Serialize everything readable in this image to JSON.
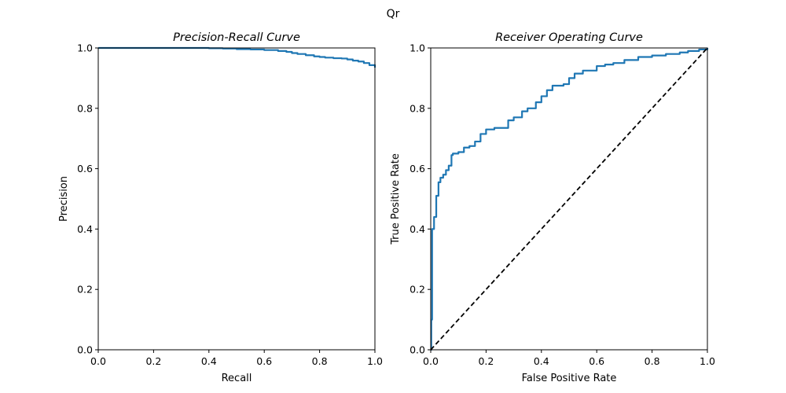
{
  "figure": {
    "suptitle": "Qr"
  },
  "chart_data": [
    {
      "type": "line",
      "title": "Precision-Recall Curve",
      "xlabel": "Recall",
      "ylabel": "Precision",
      "xlim": [
        0.0,
        1.0
      ],
      "ylim": [
        0.0,
        1.0
      ],
      "xticks": [
        "0.0",
        "0.2",
        "0.4",
        "0.6",
        "0.8",
        "1.0"
      ],
      "yticks": [
        "0.0",
        "0.2",
        "0.4",
        "0.6",
        "0.8",
        "1.0"
      ],
      "grid": false,
      "series": [
        {
          "color": "#1f77b4",
          "style": "step",
          "x": [
            0.0,
            0.05,
            0.1,
            0.2,
            0.3,
            0.4,
            0.45,
            0.5,
            0.55,
            0.6,
            0.65,
            0.68,
            0.7,
            0.72,
            0.75,
            0.78,
            0.8,
            0.82,
            0.85,
            0.88,
            0.9,
            0.92,
            0.94,
            0.96,
            0.98,
            1.0
          ],
          "y": [
            1.0,
            1.0,
            1.0,
            1.0,
            1.0,
            0.999,
            0.998,
            0.996,
            0.995,
            0.993,
            0.99,
            0.987,
            0.983,
            0.98,
            0.976,
            0.972,
            0.97,
            0.968,
            0.966,
            0.965,
            0.962,
            0.958,
            0.955,
            0.95,
            0.943,
            0.935
          ]
        }
      ]
    },
    {
      "type": "line",
      "title": "Receiver Operating Curve",
      "xlabel": "False Positive Rate",
      "ylabel": "True Positive Rate",
      "xlim": [
        0.0,
        1.0
      ],
      "ylim": [
        0.0,
        1.0
      ],
      "xticks": [
        "0.0",
        "0.2",
        "0.4",
        "0.6",
        "0.8",
        "1.0"
      ],
      "yticks": [
        "0.0",
        "0.2",
        "0.4",
        "0.6",
        "0.8",
        "1.0"
      ],
      "grid": false,
      "series": [
        {
          "color": "#1f77b4",
          "style": "step",
          "x": [
            0.0,
            0.002,
            0.005,
            0.012,
            0.02,
            0.028,
            0.035,
            0.045,
            0.055,
            0.065,
            0.075,
            0.08,
            0.1,
            0.12,
            0.14,
            0.16,
            0.18,
            0.2,
            0.23,
            0.28,
            0.3,
            0.33,
            0.35,
            0.38,
            0.4,
            0.42,
            0.44,
            0.48,
            0.5,
            0.52,
            0.55,
            0.6,
            0.63,
            0.66,
            0.7,
            0.75,
            0.8,
            0.85,
            0.9,
            0.93,
            0.97,
            1.0
          ],
          "y": [
            0.0,
            0.1,
            0.4,
            0.44,
            0.51,
            0.555,
            0.57,
            0.58,
            0.595,
            0.61,
            0.645,
            0.65,
            0.655,
            0.67,
            0.675,
            0.69,
            0.715,
            0.73,
            0.735,
            0.76,
            0.77,
            0.79,
            0.8,
            0.82,
            0.84,
            0.86,
            0.875,
            0.88,
            0.9,
            0.915,
            0.925,
            0.94,
            0.945,
            0.95,
            0.96,
            0.97,
            0.975,
            0.98,
            0.985,
            0.99,
            0.995,
            1.0
          ]
        },
        {
          "color": "#000000",
          "style": "dashed",
          "x": [
            0.0,
            1.0
          ],
          "y": [
            0.0,
            1.0
          ]
        }
      ]
    }
  ]
}
